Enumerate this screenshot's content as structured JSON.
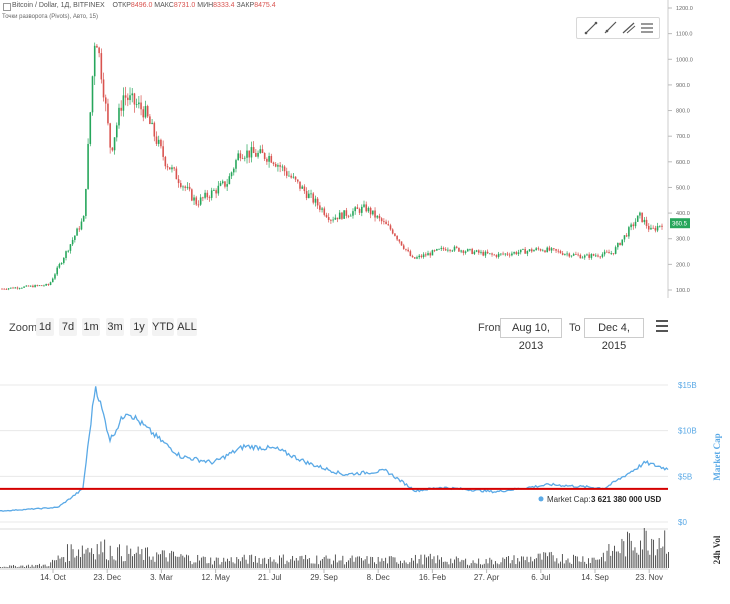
{
  "header": {
    "title": "Bitcoin / Dollar, 1Д, BITFINEX",
    "ohlc": [
      {
        "label": "ОТКР",
        "value": "8496.0"
      },
      {
        "label": "МАКС",
        "value": "8731.0"
      },
      {
        "label": "МИН",
        "value": "8333.4"
      },
      {
        "label": "ЗАКР",
        "value": "8475.4"
      }
    ],
    "sub": "Точки разворота (Pivots), Авто, 15)"
  },
  "price_chart": {
    "y_ticks": [
      "1200.0",
      "1100.0",
      "1000.0",
      "900.0",
      "800.0",
      "700.0",
      "600.0",
      "500.0",
      "400.0",
      "300.0",
      "200.0",
      "100.0"
    ],
    "price_tag": "360.5",
    "price_tag_color": "#26a65b",
    "up_color": "#26a65b",
    "down_color": "#d9534f"
  },
  "zoom": {
    "label": "Zoom",
    "buttons": [
      "1d",
      "7d",
      "1m",
      "3m",
      "1y",
      "YTD",
      "ALL"
    ],
    "from_label": "From",
    "from_value": "Aug 10, 2013",
    "to_label": "To",
    "to_value": "Dec 4, 2015"
  },
  "market_cap_chart": {
    "y_ticks": [
      "$15B",
      "$10B",
      "$5B",
      "$0"
    ],
    "axis_title": "Market Cap",
    "vol_title": "24h Vol",
    "tooltip_label": "Market Cap:",
    "tooltip_value": "3 621 380 000 USD",
    "line_color": "#5aa9e6",
    "ref_line_color": "#d40000",
    "x_ticks": [
      "14. Oct",
      "23. Dec",
      "3. Mar",
      "12. May",
      "21. Jul",
      "29. Sep",
      "8. Dec",
      "16. Feb",
      "27. Apr",
      "6. Jul",
      "14. Sep",
      "23. Nov"
    ]
  },
  "chart_data": [
    {
      "type": "line",
      "title": "Bitcoin / Dollar, 1Д, BITFINEX",
      "note": "candlestick daily price",
      "x": [
        "2013-08",
        "2013-10",
        "2013-11-15",
        "2013-11-30",
        "2013-12-10",
        "2013-12-20",
        "2014-01-05",
        "2014-02-01",
        "2014-03-01",
        "2014-04-10",
        "2014-05-20",
        "2014-06-05",
        "2014-07-15",
        "2014-08-20",
        "2014-10-01",
        "2014-11-15",
        "2014-12-20",
        "2015-01-15",
        "2015-03-01",
        "2015-05-01",
        "2015-07-01",
        "2015-08-25",
        "2015-10-01",
        "2015-11-05",
        "2015-11-20",
        "2015-12-04"
      ],
      "y": [
        105,
        120,
        380,
        1120,
        900,
        640,
        860,
        800,
        600,
        440,
        520,
        640,
        620,
        510,
        380,
        420,
        330,
        220,
        265,
        235,
        260,
        230,
        245,
        390,
        330,
        360.5
      ],
      "ylim": [
        100,
        1200
      ]
    },
    {
      "type": "line",
      "title": "",
      "ylabel": "Market Cap",
      "note": "USD billions",
      "x": [
        "2013-08",
        "2013-10-14",
        "2013-11-15",
        "2013-12-01",
        "2013-12-20",
        "2014-01-10",
        "2014-02-15",
        "2014-03-20",
        "2014-05-01",
        "2014-06-10",
        "2014-07-21",
        "2014-09-01",
        "2014-10-15",
        "2014-12-08",
        "2015-01-15",
        "2015-02-16",
        "2015-04-27",
        "2015-07-06",
        "2015-09-14",
        "2015-11-05",
        "2015-12-04"
      ],
      "y": [
        1.2,
        1.6,
        3.6,
        15.0,
        9.0,
        12.2,
        9.5,
        7.2,
        6.5,
        8.3,
        8.0,
        6.4,
        5.2,
        5.6,
        3.4,
        3.8,
        3.3,
        4.1,
        3.7,
        6.5,
        5.8
      ],
      "ylim": [
        0,
        15
      ],
      "reference_line": 3.621
    },
    {
      "type": "bar",
      "title": "",
      "ylabel": "24h Vol",
      "note": "24h volume, relative",
      "x": [
        "2013-08",
        "2013-10",
        "2013-11",
        "2013-12",
        "2014-01",
        "2014-03",
        "2014-05",
        "2014-07",
        "2014-09",
        "2014-12",
        "2015-02",
        "2015-04",
        "2015-07",
        "2015-09",
        "2015-11"
      ],
      "values": [
        0.05,
        0.1,
        0.6,
        0.7,
        0.5,
        0.4,
        0.25,
        0.3,
        0.3,
        0.25,
        0.3,
        0.2,
        0.35,
        0.3,
        1.0
      ]
    }
  ]
}
